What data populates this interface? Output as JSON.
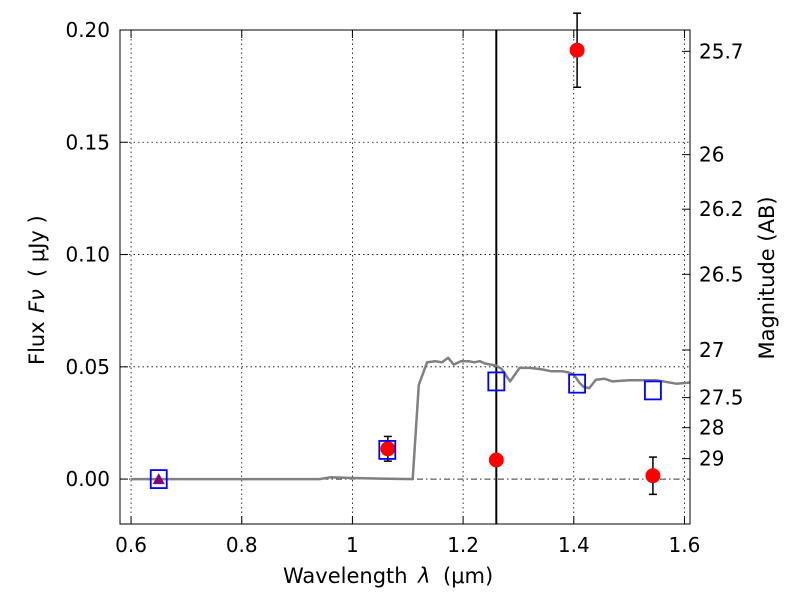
{
  "chart_data": {
    "type": "scatter",
    "xlabel": "Wavelength",
    "xlabel_symbol": "λ",
    "xlabel_unit": "(μm)",
    "ylabel": "Flux",
    "ylabel_symbol": "Fν",
    "ylabel_unit": "( μJy )",
    "y2label": "Magnitude (AB)",
    "xlim": [
      0.58,
      1.61
    ],
    "ylim": [
      -0.02,
      0.2
    ],
    "grid": true,
    "x_ticks": [
      {
        "value": 0.6,
        "label": "0.6"
      },
      {
        "value": 0.8,
        "label": "0.8"
      },
      {
        "value": 1.0,
        "label": "1"
      },
      {
        "value": 1.2,
        "label": "1.2"
      },
      {
        "value": 1.4,
        "label": "1.4"
      },
      {
        "value": 1.6,
        "label": "1.6"
      }
    ],
    "y_ticks": [
      {
        "value": 0.0,
        "label": "0.00"
      },
      {
        "value": 0.05,
        "label": "0.05"
      },
      {
        "value": 0.1,
        "label": "0.10"
      },
      {
        "value": 0.15,
        "label": "0.15"
      },
      {
        "value": 0.2,
        "label": "0.20"
      }
    ],
    "y2_ticks": [
      {
        "flux": 0.1905,
        "label": "25.7"
      },
      {
        "flux": 0.1445,
        "label": "26"
      },
      {
        "flux": 0.1202,
        "label": "26.2"
      },
      {
        "flux": 0.0912,
        "label": "26.5"
      },
      {
        "flux": 0.0575,
        "label": "27"
      },
      {
        "flux": 0.0363,
        "label": "27.5"
      },
      {
        "flux": 0.0229,
        "label": "28"
      },
      {
        "flux": 0.0091,
        "label": "29"
      }
    ],
    "vertical_line_x": 1.26,
    "zero_line_y": 0.0,
    "model_spectrum": {
      "color": "#808080",
      "points": [
        [
          0.6,
          0.0
        ],
        [
          0.94,
          0.0
        ],
        [
          0.96,
          0.0008
        ],
        [
          1.0,
          0.0005
        ],
        [
          1.05,
          0.0002
        ],
        [
          1.109,
          0.0
        ],
        [
          1.12,
          0.042
        ],
        [
          1.135,
          0.052
        ],
        [
          1.15,
          0.0525
        ],
        [
          1.162,
          0.052
        ],
        [
          1.173,
          0.054
        ],
        [
          1.183,
          0.051
        ],
        [
          1.196,
          0.0525
        ],
        [
          1.21,
          0.0525
        ],
        [
          1.22,
          0.052
        ],
        [
          1.23,
          0.0525
        ],
        [
          1.24,
          0.0515
        ],
        [
          1.26,
          0.0505
        ],
        [
          1.27,
          0.049
        ],
        [
          1.285,
          0.0435
        ],
        [
          1.302,
          0.0495
        ],
        [
          1.32,
          0.0495
        ],
        [
          1.34,
          0.049
        ],
        [
          1.36,
          0.048
        ],
        [
          1.38,
          0.048
        ],
        [
          1.39,
          0.0475
        ],
        [
          1.4,
          0.0465
        ],
        [
          1.41,
          0.043
        ],
        [
          1.418,
          0.041
        ],
        [
          1.428,
          0.0405
        ],
        [
          1.44,
          0.0442
        ],
        [
          1.455,
          0.0447
        ],
        [
          1.47,
          0.0435
        ],
        [
          1.5,
          0.044
        ],
        [
          1.55,
          0.044
        ],
        [
          1.585,
          0.0425
        ],
        [
          1.61,
          0.043
        ]
      ]
    },
    "model_photometry": {
      "color": "#0000ff",
      "points": [
        [
          0.65,
          0.0
        ],
        [
          1.063,
          0.013
        ],
        [
          1.26,
          0.0435
        ],
        [
          1.406,
          0.0425
        ],
        [
          1.543,
          0.0395
        ]
      ]
    },
    "observed_photometry": {
      "color": "#ff0000",
      "points": [
        {
          "x": 1.064,
          "y": 0.0135,
          "err": 0.0055
        },
        {
          "x": 1.26,
          "y": 0.0085,
          "err": 0.0
        },
        {
          "x": 1.406,
          "y": 0.191,
          "err": 0.0165
        },
        {
          "x": 1.543,
          "y": 0.0015,
          "err": 0.0083
        }
      ]
    },
    "upper_limit": {
      "x": 0.65,
      "y": 0.0,
      "err": 0.0015,
      "color": "#800080"
    }
  }
}
